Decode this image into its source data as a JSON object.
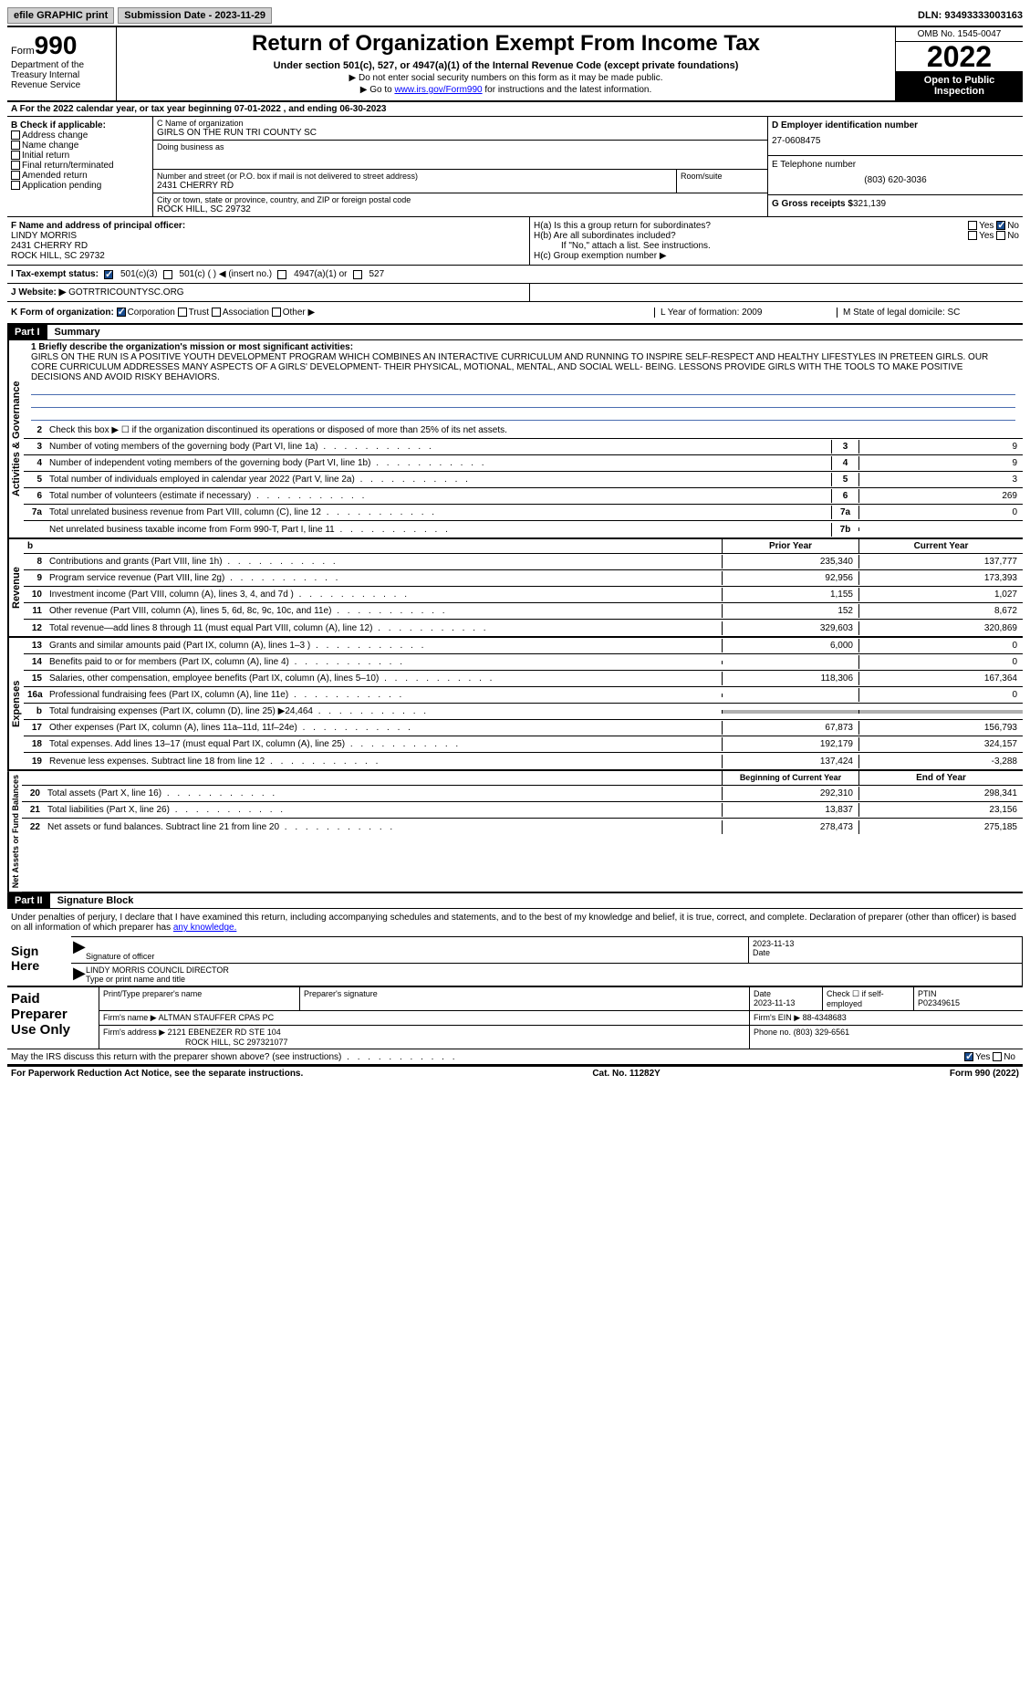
{
  "topbar": {
    "efile": "efile GRAPHIC print",
    "submission": "Submission Date - 2023-11-29",
    "dln": "DLN: 93493333003163"
  },
  "header": {
    "form_word": "Form",
    "form_num": "990",
    "dept": "Department of the Treasury Internal Revenue Service",
    "title": "Return of Organization Exempt From Income Tax",
    "sub1": "Under section 501(c), 527, or 4947(a)(1) of the Internal Revenue Code (except private foundations)",
    "sub2a": "▶ Do not enter social security numbers on this form as it may be made public.",
    "sub2b_pre": "▶ Go to ",
    "sub2b_link": "www.irs.gov/Form990",
    "sub2b_post": " for instructions and the latest information.",
    "omb": "OMB No. 1545-0047",
    "year": "2022",
    "public": "Open to Public Inspection"
  },
  "period": "A For the 2022 calendar year, or tax year beginning 07-01-2022    , and ending 06-30-2023",
  "b": {
    "header": "B Check if applicable:",
    "items": [
      "Address change",
      "Name change",
      "Initial return",
      "Final return/terminated",
      "Amended return",
      "Application pending"
    ]
  },
  "c": {
    "name_lbl": "C Name of organization",
    "name": "GIRLS ON THE RUN TRI COUNTY SC",
    "dba_lbl": "Doing business as",
    "dba": "",
    "addr_lbl": "Number and street (or P.O. box if mail is not delivered to street address)",
    "addr": "2431 CHERRY RD",
    "room_lbl": "Room/suite",
    "city_lbl": "City or town, state or province, country, and ZIP or foreign postal code",
    "city": "ROCK HILL, SC  29732"
  },
  "d": {
    "ein_lbl": "D Employer identification number",
    "ein": "27-0608475",
    "phone_lbl": "E Telephone number",
    "phone": "(803) 620-3036",
    "gross_lbl": "G Gross receipts $",
    "gross": "321,139"
  },
  "f": {
    "lbl": "F  Name and address of principal officer:",
    "name": "LINDY MORRIS",
    "addr": "2431 CHERRY RD",
    "city": "ROCK HILL, SC  29732"
  },
  "h": {
    "a": "H(a)  Is this a group return for subordinates?",
    "b": "H(b)  Are all subordinates included?",
    "b_note": "If \"No,\" attach a list. See instructions.",
    "c": "H(c)  Group exemption number ▶",
    "yes": "Yes",
    "no": "No"
  },
  "i": {
    "lbl": "I   Tax-exempt status:",
    "opts": [
      "501(c)(3)",
      "501(c) (  ) ◀ (insert no.)",
      "4947(a)(1) or",
      "527"
    ]
  },
  "j": {
    "lbl": "J  Website: ▶",
    "val": "GOTRTRICOUNTYSC.ORG"
  },
  "k": {
    "lbl": "K Form of organization:",
    "opts": [
      "Corporation",
      "Trust",
      "Association",
      "Other ▶"
    ]
  },
  "l": {
    "lbl": "L Year of formation: 2009"
  },
  "m": {
    "lbl": "M State of legal domicile: SC"
  },
  "part1": {
    "label": "Part I",
    "title": "Summary"
  },
  "summary": {
    "line1_lbl": "1  Briefly describe the organization's mission or most significant activities:",
    "mission": "GIRLS ON THE RUN IS A POSITIVE YOUTH DEVELOPMENT PROGRAM WHICH COMBINES AN INTERACTIVE CURRICULUM AND RUNNING TO INSPIRE SELF-RESPECT AND HEALTHY LIFESTYLES IN PRETEEN GIRLS. OUR CORE CURRICULUM ADDRESSES MANY ASPECTS OF A GIRLS' DEVELOPMENT- THEIR PHYSICAL, MOTIONAL, MENTAL, AND SOCIAL WELL- BEING. LESSONS PROVIDE GIRLS WITH THE TOOLS TO MAKE POSITIVE DECISIONS AND AVOID RISKY BEHAVIORS.",
    "line2": "Check this box ▶ ☐  if the organization discontinued its operations or disposed of more than 25% of its net assets.",
    "gov_section": "Activities & Governance",
    "rev_section": "Revenue",
    "exp_section": "Expenses",
    "net_section": "Net Assets or Fund Balances",
    "lines": {
      "3": {
        "text": "Number of voting members of the governing body (Part VI, line 1a)",
        "cell": "3",
        "val": "9"
      },
      "4": {
        "text": "Number of independent voting members of the governing body (Part VI, line 1b)",
        "cell": "4",
        "val": "9"
      },
      "5": {
        "text": "Total number of individuals employed in calendar year 2022 (Part V, line 2a)",
        "cell": "5",
        "val": "3"
      },
      "6": {
        "text": "Total number of volunteers (estimate if necessary)",
        "cell": "6",
        "val": "269"
      },
      "7a": {
        "text": "Total unrelated business revenue from Part VIII, column (C), line 12",
        "cell": "7a",
        "val": "0"
      },
      "7b": {
        "text": "Net unrelated business taxable income from Form 990-T, Part I, line 11",
        "cell": "7b",
        "val": ""
      }
    },
    "col_headers": {
      "prior": "Prior Year",
      "current": "Current Year",
      "boy": "Beginning of Current Year",
      "eoy": "End of Year"
    },
    "rev": [
      {
        "n": "8",
        "text": "Contributions and grants (Part VIII, line 1h)",
        "prior": "235,340",
        "cur": "137,777"
      },
      {
        "n": "9",
        "text": "Program service revenue (Part VIII, line 2g)",
        "prior": "92,956",
        "cur": "173,393"
      },
      {
        "n": "10",
        "text": "Investment income (Part VIII, column (A), lines 3, 4, and 7d )",
        "prior": "1,155",
        "cur": "1,027"
      },
      {
        "n": "11",
        "text": "Other revenue (Part VIII, column (A), lines 5, 6d, 8c, 9c, 10c, and 11e)",
        "prior": "152",
        "cur": "8,672"
      },
      {
        "n": "12",
        "text": "Total revenue—add lines 8 through 11 (must equal Part VIII, column (A), line 12)",
        "prior": "329,603",
        "cur": "320,869"
      }
    ],
    "exp": [
      {
        "n": "13",
        "text": "Grants and similar amounts paid (Part IX, column (A), lines 1–3 )",
        "prior": "6,000",
        "cur": "0"
      },
      {
        "n": "14",
        "text": "Benefits paid to or for members (Part IX, column (A), line 4)",
        "prior": "",
        "cur": "0"
      },
      {
        "n": "15",
        "text": "Salaries, other compensation, employee benefits (Part IX, column (A), lines 5–10)",
        "prior": "118,306",
        "cur": "167,364"
      },
      {
        "n": "16a",
        "text": "Professional fundraising fees (Part IX, column (A), line 11e)",
        "prior": "",
        "cur": "0"
      },
      {
        "n": "b",
        "text": "Total fundraising expenses (Part IX, column (D), line 25) ▶24,464",
        "prior": "SHADE",
        "cur": "SHADE"
      },
      {
        "n": "17",
        "text": "Other expenses (Part IX, column (A), lines 11a–11d, 11f–24e)",
        "prior": "67,873",
        "cur": "156,793"
      },
      {
        "n": "18",
        "text": "Total expenses. Add lines 13–17 (must equal Part IX, column (A), line 25)",
        "prior": "192,179",
        "cur": "324,157"
      },
      {
        "n": "19",
        "text": "Revenue less expenses. Subtract line 18 from line 12",
        "prior": "137,424",
        "cur": "-3,288"
      }
    ],
    "net": [
      {
        "n": "20",
        "text": "Total assets (Part X, line 16)",
        "prior": "292,310",
        "cur": "298,341"
      },
      {
        "n": "21",
        "text": "Total liabilities (Part X, line 26)",
        "prior": "13,837",
        "cur": "23,156"
      },
      {
        "n": "22",
        "text": "Net assets or fund balances. Subtract line 21 from line 20",
        "prior": "278,473",
        "cur": "275,185"
      }
    ]
  },
  "part2": {
    "label": "Part II",
    "title": "Signature Block"
  },
  "sig": {
    "decl": "Under penalties of perjury, I declare that I have examined this return, including accompanying schedules and statements, and to the best of my knowledge and belief, it is true, correct, and complete. Declaration of preparer (other than officer) is based on all information of which preparer has ",
    "decl_link": "any knowledge.",
    "sign_here": "Sign Here",
    "sig_officer": "Signature of officer",
    "date": "Date",
    "date_val": "2023-11-13",
    "name_title": "LINDY MORRIS COUNCIL DIRECTOR",
    "type_name": "Type or print name and title"
  },
  "prep": {
    "label": "Paid Preparer Use Only",
    "h1": "Print/Type preparer's name",
    "h2": "Preparer's signature",
    "h3": "Date",
    "h3v": "2023-11-13",
    "h4": "Check ☐ if self-employed",
    "h5": "PTIN",
    "h5v": "P02349615",
    "firm_name_lbl": "Firm's name    ▶",
    "firm_name": "ALTMAN STAUFFER CPAS PC",
    "firm_ein_lbl": "Firm's EIN ▶",
    "firm_ein": "88-4348683",
    "firm_addr_lbl": "Firm's address ▶",
    "firm_addr": "2121 EBENEZER RD STE 104",
    "firm_city": "ROCK HILL, SC  297321077",
    "phone_lbl": "Phone no.",
    "phone": "(803) 329-6561"
  },
  "discuss": {
    "text": "May the IRS discuss this return with the preparer shown above? (see instructions)",
    "yes": "Yes",
    "no": "No"
  },
  "footer": {
    "left": "For Paperwork Reduction Act Notice, see the separate instructions.",
    "mid": "Cat. No. 11282Y",
    "right": "Form 990 (2022)"
  }
}
